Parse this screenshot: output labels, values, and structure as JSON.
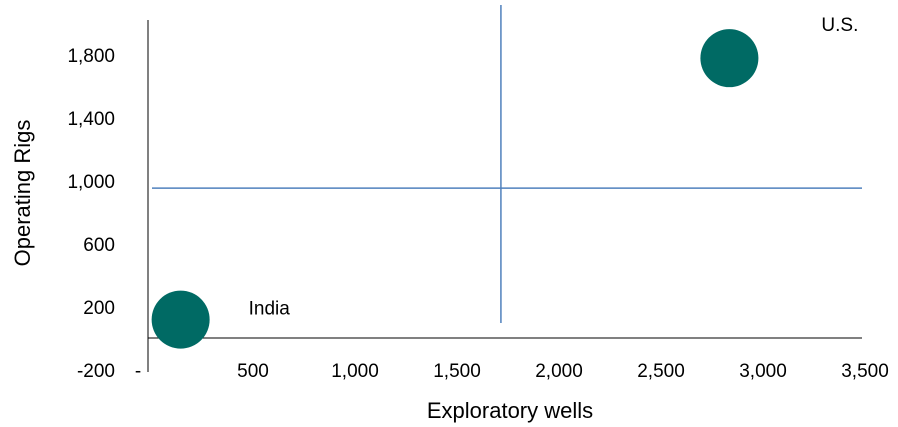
{
  "chart_data": {
    "type": "scatter",
    "title": "",
    "xlabel": "Exploratory wells",
    "ylabel": "Operating Rigs",
    "xlim": [
      0,
      3500
    ],
    "ylim": [
      -200,
      2000
    ],
    "x_ticks": [
      "-",
      "500",
      "1,000",
      "1,500",
      "2,000",
      "2,500",
      "3,000",
      "3,500"
    ],
    "x_tick_values": [
      0,
      500,
      1000,
      1500,
      2000,
      2500,
      3000,
      3500
    ],
    "y_ticks": [
      "-200",
      "200",
      "600",
      "1,000",
      "1,400",
      "1,800"
    ],
    "y_tick_values": [
      -200,
      200,
      600,
      1000,
      1400,
      1800
    ],
    "grid": false,
    "reference_lines": {
      "x": 1730,
      "y": 955
    },
    "colors": {
      "point": "#006a64",
      "reference": "#4f81bd",
      "axis": "#000000"
    },
    "points": [
      {
        "label": "India",
        "x": 160,
        "y": 120
      },
      {
        "label": "U.S.",
        "x": 2850,
        "y": 1780
      }
    ]
  }
}
